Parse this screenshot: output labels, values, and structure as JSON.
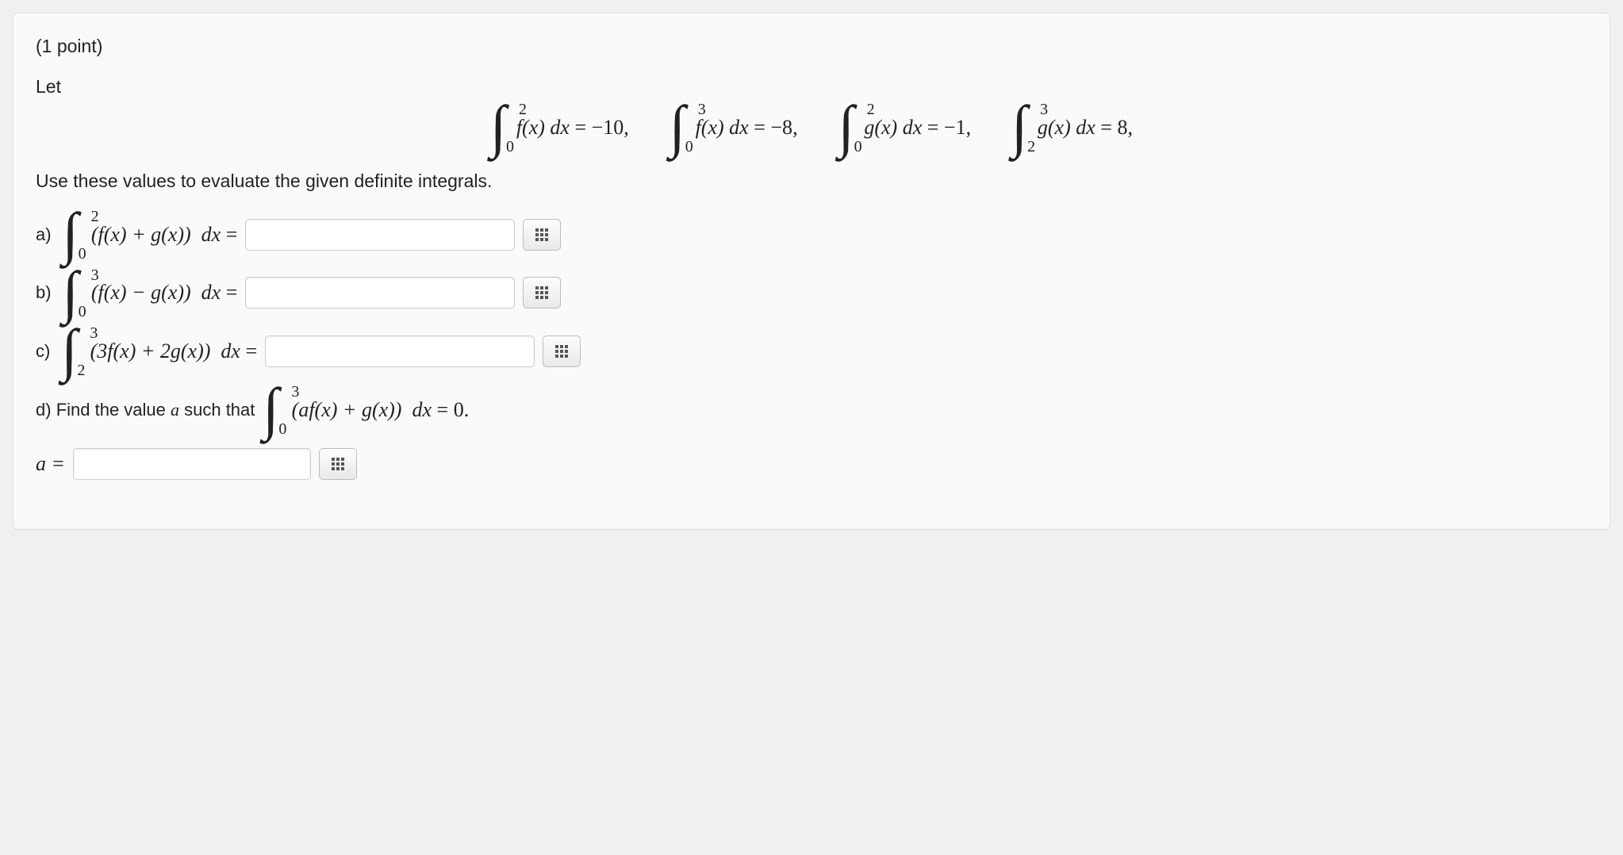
{
  "points_label": "(1 point)",
  "let_label": "Let",
  "instruction": "Use these values to evaluate the given definite integrals.",
  "given": [
    {
      "lower": "0",
      "upper": "2",
      "integrand": "f(x)",
      "diff": "dx",
      "value": "−10"
    },
    {
      "lower": "0",
      "upper": "3",
      "integrand": "f(x)",
      "diff": "dx",
      "value": "−8"
    },
    {
      "lower": "0",
      "upper": "2",
      "integrand": "g(x)",
      "diff": "dx",
      "value": "−1"
    },
    {
      "lower": "2",
      "upper": "3",
      "integrand": "g(x)",
      "diff": "dx",
      "value": "8"
    }
  ],
  "parts": {
    "a": {
      "label": "a)",
      "lower": "0",
      "upper": "2",
      "integrand": "(f(x) + g(x))",
      "diff": "dx",
      "eq": "="
    },
    "b": {
      "label": "b)",
      "lower": "0",
      "upper": "3",
      "integrand": "(f(x) − g(x))",
      "diff": "dx",
      "eq": "="
    },
    "c": {
      "label": "c)",
      "lower": "2",
      "upper": "3",
      "integrand": "(3f(x) + 2g(x))",
      "diff": "dx",
      "eq": "="
    },
    "d": {
      "label": "d)",
      "pretext": "Find the value ",
      "var": "a",
      "midtext": " such that ",
      "lower": "0",
      "upper": "3",
      "integrand": "(af(x) + g(x))",
      "diff": "dx",
      "rhs": "= 0.",
      "answer_label": "a ="
    }
  },
  "colors": {
    "panel_bg": "#fafafa",
    "page_bg": "#f0f0f0",
    "border": "#dddddd",
    "text": "#222222",
    "btn_border": "#bdbdbd"
  }
}
